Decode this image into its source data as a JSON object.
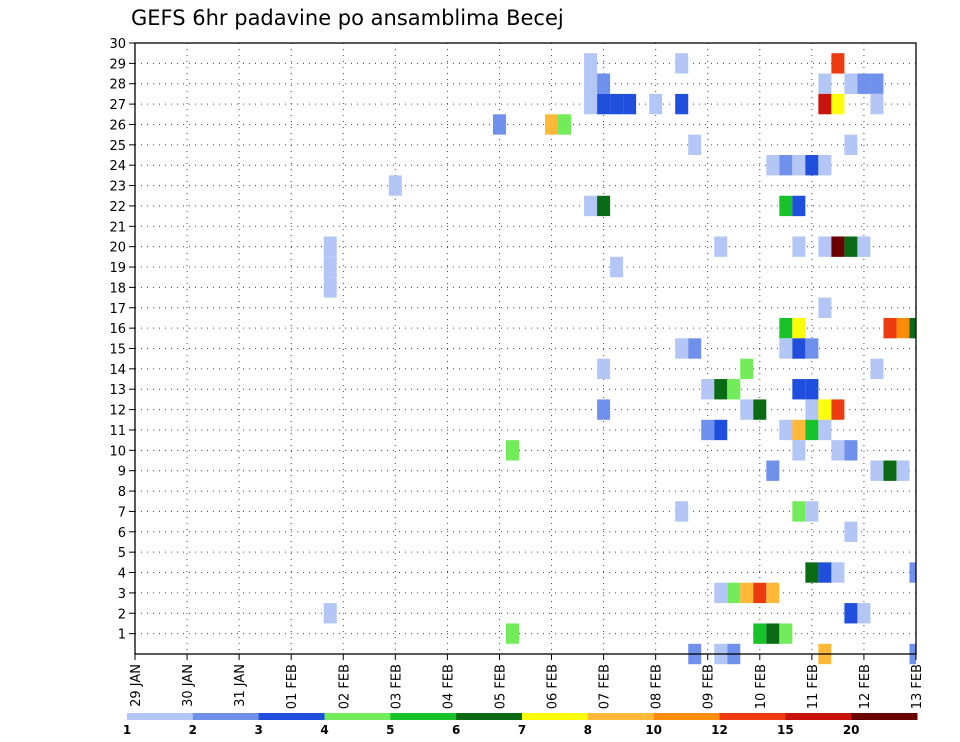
{
  "chart_data": {
    "type": "heatmap",
    "title": "GEFS 6hr padavine po ansamblima Becej",
    "x_tick_labels": [
      "29 JAN",
      "30 JAN",
      "31 JAN",
      "01 FEB",
      "02 FEB",
      "03 FEB",
      "04 FEB",
      "05 FEB",
      "06 FEB",
      "07 FEB",
      "08 FEB",
      "09 FEB",
      "10 FEB",
      "11 FEB",
      "12 FEB",
      "13 FEB"
    ],
    "y_tick_labels": [
      "1",
      "2",
      "3",
      "4",
      "5",
      "6",
      "7",
      "8",
      "9",
      "10",
      "11",
      "12",
      "13",
      "14",
      "15",
      "16",
      "17",
      "18",
      "19",
      "20",
      "21",
      "22",
      "23",
      "24",
      "25",
      "26",
      "27",
      "28",
      "29",
      "30"
    ],
    "xlim_days": [
      0,
      15
    ],
    "ylim_members": [
      0,
      30
    ],
    "grid": true,
    "legend_position": "bottom",
    "color_levels": {
      "boundary_labels": [
        "1",
        "2",
        "3",
        "4",
        "5",
        "6",
        "7",
        "8",
        "10",
        "12",
        "15",
        "20"
      ],
      "colors": [
        "#b4c6f5",
        "#6f91ec",
        "#1f4fdc",
        "#72ec5a",
        "#17c22b",
        "#0a6b14",
        "#ffff0a",
        "#ffb837",
        "#ff8c0b",
        "#ee3a11",
        "#c8130c",
        "#6b0000"
      ]
    },
    "cells_note": "each cell: [day offset from 29 JAN 00 UTC in 6h steps, ensemble member, color class index 0-11]",
    "cells": [
      [
        8.75,
        29,
        0
      ],
      [
        10.5,
        29,
        0
      ],
      [
        13.5,
        29,
        9
      ],
      [
        8.75,
        28,
        0
      ],
      [
        9.0,
        28,
        1
      ],
      [
        13.25,
        28,
        0
      ],
      [
        13.75,
        28,
        0
      ],
      [
        14.0,
        28,
        1
      ],
      [
        14.25,
        28,
        1
      ],
      [
        8.75,
        27,
        0
      ],
      [
        9.0,
        27,
        2
      ],
      [
        9.25,
        27,
        2
      ],
      [
        9.5,
        27,
        2
      ],
      [
        10.0,
        27,
        0
      ],
      [
        10.5,
        27,
        2
      ],
      [
        13.25,
        27,
        10
      ],
      [
        13.5,
        27,
        6
      ],
      [
        14.25,
        27,
        0
      ],
      [
        7.0,
        26,
        1
      ],
      [
        8.0,
        26,
        7
      ],
      [
        8.25,
        26,
        3
      ],
      [
        10.75,
        25,
        0
      ],
      [
        13.75,
        25,
        0
      ],
      [
        12.25,
        24,
        0
      ],
      [
        12.5,
        24,
        1
      ],
      [
        12.75,
        24,
        0
      ],
      [
        13.0,
        24,
        2
      ],
      [
        13.25,
        24,
        0
      ],
      [
        5.0,
        23,
        0
      ],
      [
        8.75,
        22,
        0
      ],
      [
        9.0,
        22,
        5
      ],
      [
        12.5,
        22,
        4
      ],
      [
        12.75,
        22,
        2
      ],
      [
        3.75,
        20,
        0
      ],
      [
        11.25,
        20,
        0
      ],
      [
        12.75,
        20,
        0
      ],
      [
        13.25,
        20,
        0
      ],
      [
        13.5,
        20,
        11
      ],
      [
        13.75,
        20,
        5
      ],
      [
        14.0,
        20,
        0
      ],
      [
        3.75,
        19,
        0
      ],
      [
        9.25,
        19,
        0
      ],
      [
        3.75,
        18,
        0
      ],
      [
        13.25,
        17,
        0
      ],
      [
        12.5,
        16,
        4
      ],
      [
        12.75,
        16,
        6
      ],
      [
        14.5,
        16,
        9
      ],
      [
        14.75,
        16,
        8
      ],
      [
        15.0,
        16,
        5
      ],
      [
        10.5,
        15,
        0
      ],
      [
        10.75,
        15,
        1
      ],
      [
        12.5,
        15,
        0
      ],
      [
        12.75,
        15,
        2
      ],
      [
        13.0,
        15,
        1
      ],
      [
        9.0,
        14,
        0
      ],
      [
        11.75,
        14,
        3
      ],
      [
        14.25,
        14,
        0
      ],
      [
        11.0,
        13,
        0
      ],
      [
        11.25,
        13,
        5
      ],
      [
        11.5,
        13,
        3
      ],
      [
        12.75,
        13,
        2
      ],
      [
        13.0,
        13,
        2
      ],
      [
        9.0,
        12,
        1
      ],
      [
        11.75,
        12,
        0
      ],
      [
        12.0,
        12,
        5
      ],
      [
        13.0,
        12,
        0
      ],
      [
        13.25,
        12,
        6
      ],
      [
        13.5,
        12,
        9
      ],
      [
        11.0,
        11,
        1
      ],
      [
        11.25,
        11,
        2
      ],
      [
        12.5,
        11,
        0
      ],
      [
        12.75,
        11,
        7
      ],
      [
        13.0,
        11,
        4
      ],
      [
        13.25,
        11,
        0
      ],
      [
        7.25,
        10,
        3
      ],
      [
        12.75,
        10,
        0
      ],
      [
        13.5,
        10,
        0
      ],
      [
        13.75,
        10,
        1
      ],
      [
        12.25,
        9,
        1
      ],
      [
        14.25,
        9,
        0
      ],
      [
        14.5,
        9,
        5
      ],
      [
        14.75,
        9,
        0
      ],
      [
        10.5,
        7,
        0
      ],
      [
        12.75,
        7,
        3
      ],
      [
        13.0,
        7,
        0
      ],
      [
        13.75,
        6,
        0
      ],
      [
        13.0,
        4,
        5
      ],
      [
        13.25,
        4,
        2
      ],
      [
        13.5,
        4,
        0
      ],
      [
        15.0,
        4,
        1
      ],
      [
        11.25,
        3,
        0
      ],
      [
        11.5,
        3,
        3
      ],
      [
        11.75,
        3,
        7
      ],
      [
        12.0,
        3,
        9
      ],
      [
        12.25,
        3,
        7
      ],
      [
        3.75,
        2,
        0
      ],
      [
        13.75,
        2,
        2
      ],
      [
        14.0,
        2,
        0
      ],
      [
        7.25,
        1,
        3
      ],
      [
        12.0,
        1,
        4
      ],
      [
        12.25,
        1,
        5
      ],
      [
        12.5,
        1,
        3
      ],
      [
        10.75,
        0,
        1
      ],
      [
        11.25,
        0,
        0
      ],
      [
        11.5,
        0,
        1
      ],
      [
        13.25,
        0,
        7
      ],
      [
        15.0,
        0,
        1
      ]
    ]
  }
}
